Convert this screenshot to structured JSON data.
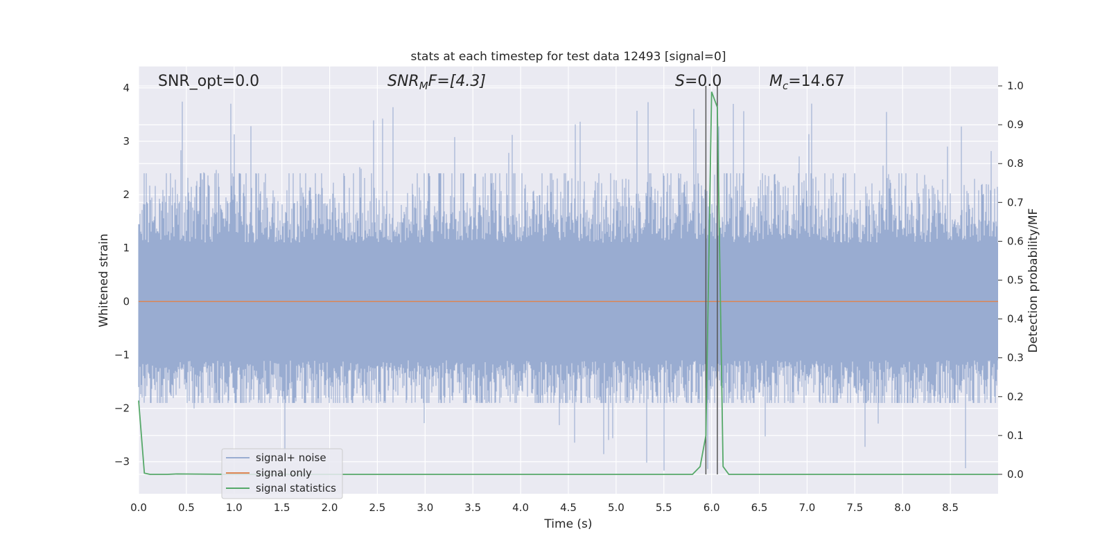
{
  "chart_data": {
    "type": "line",
    "title": "stats at each timestep for test data 12493 [signal=0]",
    "xlabel": "Time (s)",
    "ylabel_left": "Whitened strain",
    "ylabel_right": "Detection probability/MF",
    "xlim": [
      0,
      9
    ],
    "ylim_left": [
      -3.6,
      4.4
    ],
    "ylim_right": [
      -0.05,
      1.05
    ],
    "x_ticks": [
      "0.0",
      "0.5",
      "1.0",
      "1.5",
      "2.0",
      "2.5",
      "3.0",
      "3.5",
      "4.0",
      "4.5",
      "5.0",
      "5.5",
      "6.0",
      "6.5",
      "7.0",
      "7.5",
      "8.0",
      "8.5"
    ],
    "y_ticks_left": [
      "4",
      "3",
      "2",
      "1",
      "0",
      "−1",
      "−2",
      "−3"
    ],
    "y_ticks_right": [
      "1.0",
      "0.9",
      "0.8",
      "0.7",
      "0.6",
      "0.5",
      "0.4",
      "0.3",
      "0.2",
      "0.1",
      "0.0"
    ],
    "grid": true,
    "annotations": {
      "snr_opt": "SNR_opt=0.0",
      "snr_mf_main": "SNR",
      "snr_mf_sub": "M",
      "snr_mf_rest": "F=[4.3]",
      "s_main": "S",
      "s_rest": "=0.0",
      "mc_main": "M",
      "mc_sub": "c",
      "mc_rest": "=14.67"
    },
    "vertical_lines_s": [
      5.94,
      6.06
    ],
    "series": [
      {
        "name": "signal+ noise",
        "axis": "left",
        "color": "#99acd1",
        "description_envelope": {
          "typical_positive_max": 2.4,
          "typical_negative_min": -1.9,
          "peak_max": 4.0,
          "peak_min": -3.3
        }
      },
      {
        "name": "signal only",
        "axis": "left",
        "color": "#dd8452",
        "x": [
          0,
          9
        ],
        "y": [
          0,
          0
        ]
      },
      {
        "name": "signal statistics",
        "axis": "right",
        "color": "#55a868",
        "x": [
          0.0,
          0.06,
          0.12,
          0.3,
          0.4,
          1.0,
          2.0,
          3.0,
          4.0,
          5.0,
          5.8,
          5.88,
          5.94,
          6.0,
          6.06,
          6.12,
          6.18,
          7.0,
          8.0,
          9.0
        ],
        "y": [
          0.19,
          0.003,
          0.0,
          0.0,
          0.001,
          0.0,
          0.0,
          0.0,
          0.0,
          0.0,
          0.0,
          0.02,
          0.1,
          0.985,
          0.945,
          0.02,
          0.0,
          0.0,
          0.0,
          0.0
        ]
      }
    ],
    "legend": {
      "placement": "lower-left",
      "entries": [
        "signal+ noise",
        "signal only",
        "signal statistics"
      ]
    }
  }
}
